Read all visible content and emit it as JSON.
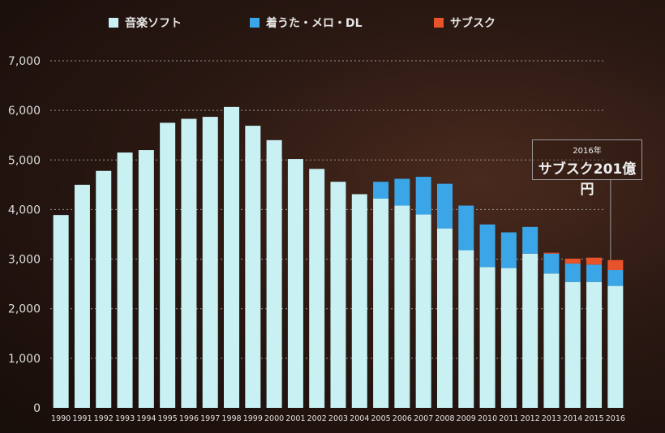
{
  "chart_data": {
    "type": "bar",
    "stacked": true,
    "categories": [
      "1990",
      "1991",
      "1992",
      "1993",
      "1994",
      "1995",
      "1996",
      "1997",
      "1998",
      "1999",
      "2000",
      "2001",
      "2002",
      "2003",
      "2004",
      "2005",
      "2006",
      "2007",
      "2008",
      "2009",
      "2010",
      "2011",
      "2012",
      "2013",
      "2014",
      "2015",
      "2016"
    ],
    "series": [
      {
        "name": "音楽ソフト",
        "color": "#c9f1f4",
        "values": [
          3890,
          4500,
          4780,
          5150,
          5200,
          5750,
          5830,
          5870,
          6070,
          5690,
          5400,
          5020,
          4820,
          4560,
          4310,
          4220,
          4080,
          3900,
          3620,
          3180,
          2840,
          2820,
          3110,
          2710,
          2540,
          2540,
          2460
        ]
      },
      {
        "name": "着うた・メロ・DL",
        "color": "#3aa6e8",
        "values": [
          0,
          0,
          0,
          0,
          0,
          0,
          0,
          0,
          0,
          0,
          0,
          0,
          0,
          0,
          0,
          340,
          540,
          760,
          900,
          900,
          860,
          720,
          540,
          400,
          370,
          350,
          320
        ]
      },
      {
        "name": "サブスク",
        "color": "#e8532a",
        "values": [
          0,
          0,
          0,
          0,
          0,
          0,
          0,
          0,
          0,
          0,
          0,
          0,
          0,
          0,
          0,
          0,
          0,
          0,
          0,
          0,
          0,
          0,
          0,
          20,
          100,
          140,
          201
        ]
      }
    ],
    "yticks": [
      "0",
      "1,000",
      "2,000",
      "3,000",
      "4,000",
      "5,000",
      "6,000",
      "7,000"
    ],
    "ylim": [
      0,
      7000
    ],
    "grid": true,
    "legend_position": "top-center",
    "annotation": {
      "category": "2016",
      "year_text": "2016年",
      "text": "サブスク201億円"
    }
  }
}
